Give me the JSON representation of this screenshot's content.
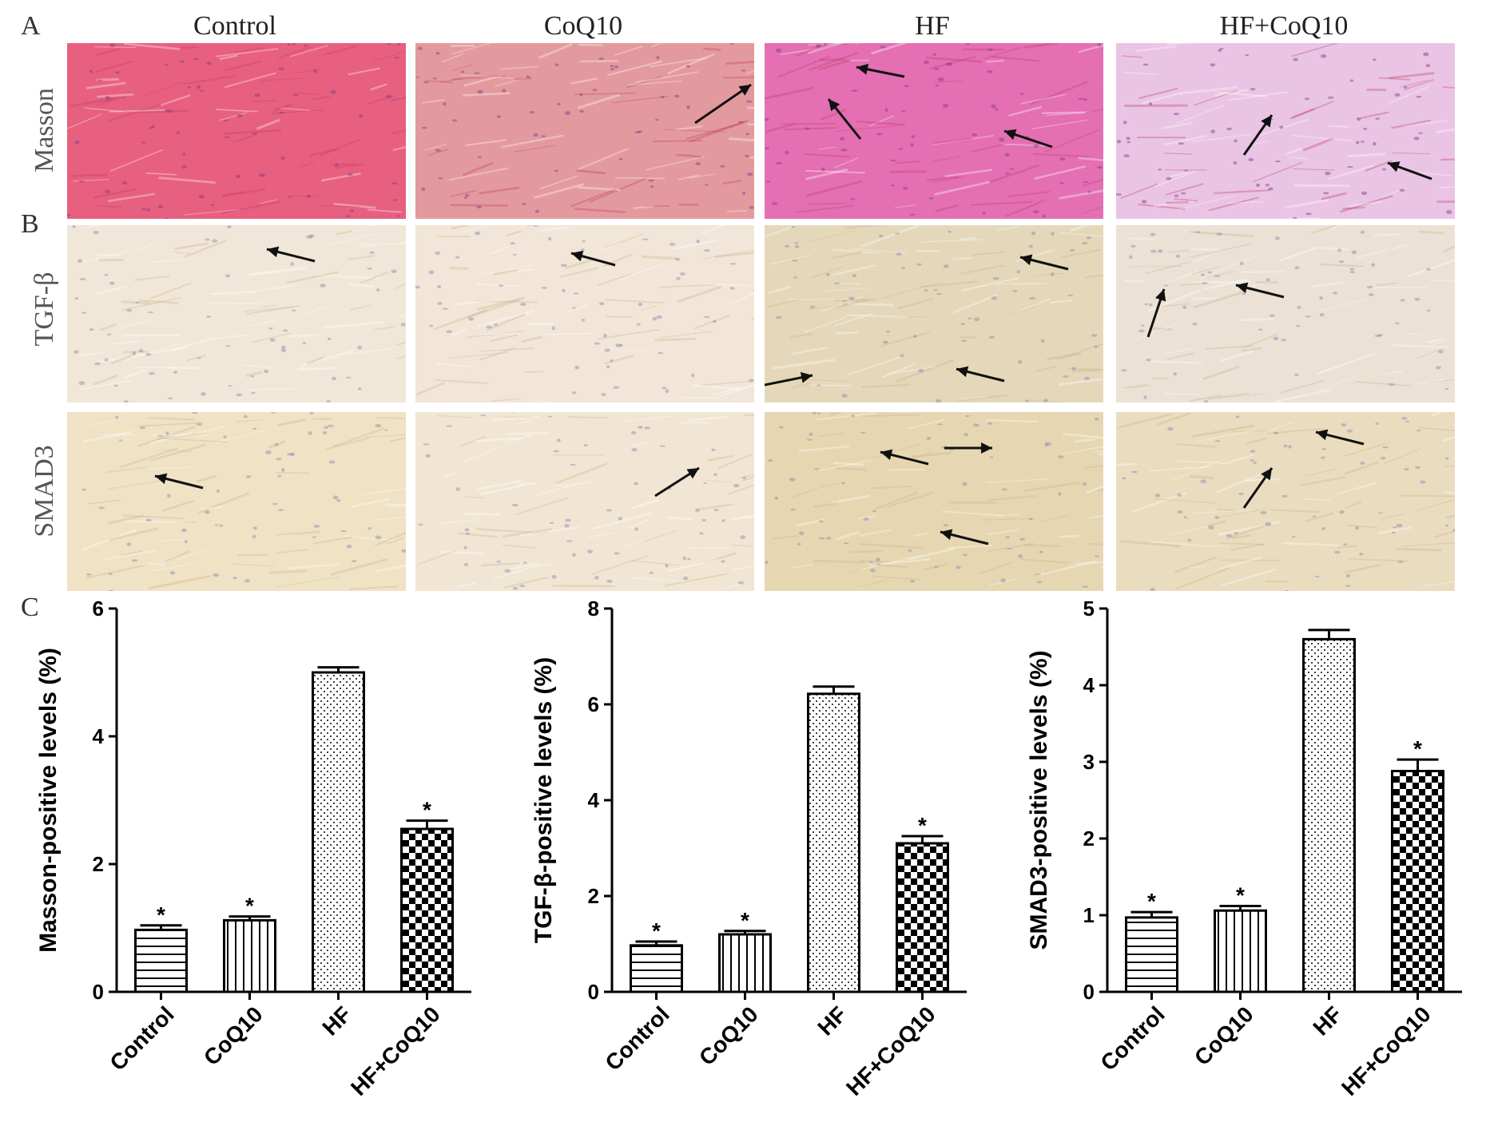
{
  "panels": {
    "a_letter": "A",
    "b_letter": "B",
    "c_letter": "C"
  },
  "column_titles": [
    "Control",
    "CoQ10",
    "HF",
    "HF+CoQ10"
  ],
  "row_labels": [
    "Masson",
    "TGF-β",
    "SMAD3"
  ],
  "micrograph_colors": {
    "masson": [
      "#e8607f",
      "#e39a9e",
      "#e46fb3",
      "#eac4e4"
    ],
    "tgf": [
      "#f1e7d8",
      "#f1e6d7",
      "#e5d8ba",
      "#ebe2d5"
    ],
    "smad3": [
      "#efe2c5",
      "#f1e6d3",
      "#e6d7b2",
      "#eadcbf"
    ]
  },
  "chart_data": [
    {
      "type": "bar",
      "categories": [
        "Control",
        "CoQ10",
        "HF",
        "HF+CoQ10"
      ],
      "values": [
        0.97,
        1.12,
        5.0,
        2.55
      ],
      "errors": [
        0.07,
        0.06,
        0.08,
        0.13
      ],
      "significance": [
        "*",
        "*",
        "",
        "*"
      ],
      "patterns": [
        "horizontal-lines",
        "vertical-lines",
        "dots",
        "checkerboard"
      ],
      "ylabel": "Masson-positive levels (%)",
      "ylim": [
        0,
        6
      ],
      "yticks": [
        0,
        2,
        4,
        6
      ]
    },
    {
      "type": "bar",
      "categories": [
        "Control",
        "CoQ10",
        "HF",
        "HF+CoQ10"
      ],
      "values": [
        0.97,
        1.2,
        6.22,
        3.1
      ],
      "errors": [
        0.08,
        0.07,
        0.15,
        0.15
      ],
      "significance": [
        "*",
        "*",
        "",
        "*"
      ],
      "patterns": [
        "horizontal-lines",
        "vertical-lines",
        "dots",
        "checkerboard"
      ],
      "ylabel": "TGF-β-positive levels (%)",
      "ylim": [
        0,
        8
      ],
      "yticks": [
        0,
        2,
        4,
        6,
        8
      ]
    },
    {
      "type": "bar",
      "categories": [
        "Control",
        "CoQ10",
        "HF",
        "HF+CoQ10"
      ],
      "values": [
        0.97,
        1.06,
        4.6,
        2.88
      ],
      "errors": [
        0.07,
        0.06,
        0.12,
        0.15
      ],
      "significance": [
        "*",
        "*",
        "",
        "*"
      ],
      "patterns": [
        "horizontal-lines",
        "vertical-lines",
        "dots",
        "checkerboard"
      ],
      "ylabel": "SMAD3-positive levels (%)",
      "ylim": [
        0,
        5
      ],
      "yticks": [
        0,
        1,
        2,
        3,
        4,
        5
      ]
    }
  ]
}
